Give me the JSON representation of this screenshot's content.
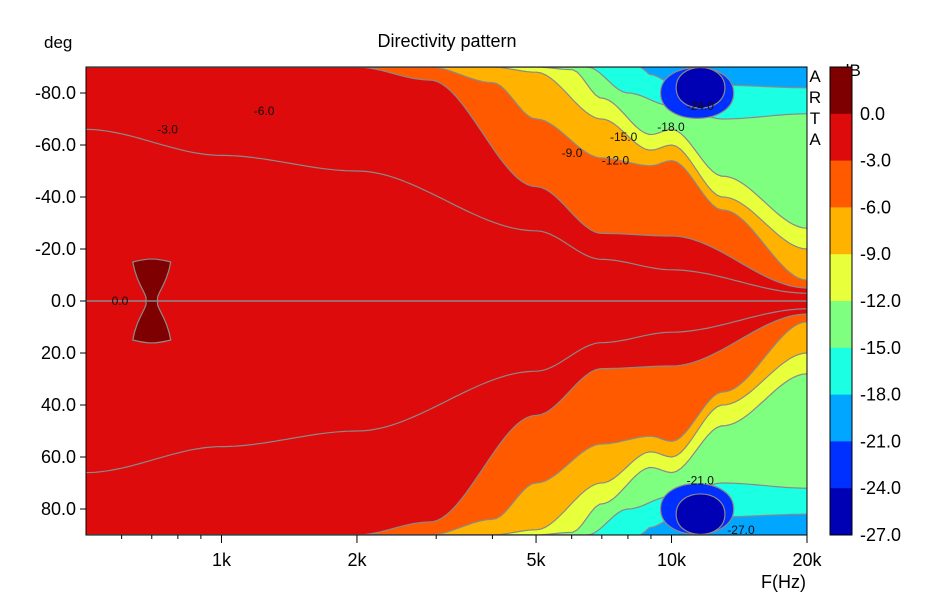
{
  "chart_data": {
    "type": "heatmap",
    "title": "Directivity pattern",
    "ylabel": "deg",
    "xlabel": "F(Hz)",
    "x_scale": "log",
    "xlim": [
      500,
      20000
    ],
    "ylim": [
      -90,
      90
    ],
    "y_inverted": true,
    "y_ticks": [
      {
        "v": -80,
        "t": "-80.0"
      },
      {
        "v": -60,
        "t": "-60.0"
      },
      {
        "v": -40,
        "t": "-40.0"
      },
      {
        "v": -20,
        "t": "-20.0"
      },
      {
        "v": 0,
        "t": "0.0"
      },
      {
        "v": 20,
        "t": "20.0"
      },
      {
        "v": 40,
        "t": "40.0"
      },
      {
        "v": 60,
        "t": "60.0"
      },
      {
        "v": 80,
        "t": "80.0"
      }
    ],
    "x_ticks": [
      {
        "v": 1000,
        "t": "1k"
      },
      {
        "v": 2000,
        "t": "2k"
      },
      {
        "v": 5000,
        "t": "5k"
      },
      {
        "v": 10000,
        "t": "10k"
      },
      {
        "v": 20000,
        "t": "20k"
      }
    ],
    "x_minor_ticks": [
      600,
      700,
      800,
      900,
      3000,
      4000,
      6000,
      7000,
      8000,
      9000
    ],
    "grid": false,
    "colorbar": {
      "label": "dB",
      "position": "right",
      "levels": [
        {
          "t": "0.0",
          "v": 0
        },
        {
          "t": "-3.0",
          "v": -3
        },
        {
          "t": "-6.0",
          "v": -6
        },
        {
          "t": "-9.0",
          "v": -9
        },
        {
          "t": "-12.0",
          "v": -12
        },
        {
          "t": "-15.0",
          "v": -15
        },
        {
          "t": "-18.0",
          "v": -18
        },
        {
          "t": "-21.0",
          "v": -21
        },
        {
          "t": "-24.0",
          "v": -24
        },
        {
          "t": "-27.0",
          "v": -27
        }
      ],
      "colors": [
        "#7f0000",
        "#dd0b0b",
        "#ff5a00",
        "#ffb300",
        "#e8ff3b",
        "#7fff80",
        "#1bffe2",
        "#00a6ff",
        "#0030ff",
        "#0000b4"
      ]
    },
    "bands": [
      {
        "level": -3,
        "f": [
          500,
          1000,
          2000,
          5000,
          7000,
          10000,
          20000
        ],
        "deg": [
          66,
          56,
          50,
          27,
          16,
          12,
          3
        ]
      },
      {
        "level": -6,
        "f": [
          500,
          1000,
          2000,
          2900,
          5000,
          7000,
          10000,
          20000
        ],
        "deg": [
          90,
          90,
          90,
          85,
          44,
          26,
          25,
          5
        ]
      },
      {
        "level": -9,
        "f": [
          500,
          2900,
          4000,
          5000,
          7000,
          9000,
          10000,
          13000,
          20000
        ],
        "deg": [
          90,
          90,
          84,
          70,
          55,
          52,
          54,
          35,
          8
        ]
      },
      {
        "level": -12,
        "f": [
          500,
          4000,
          5000,
          7000,
          9000,
          10000,
          13000,
          20000
        ],
        "deg": [
          90,
          90,
          88,
          70,
          58,
          60,
          40,
          20
        ]
      },
      {
        "level": -15,
        "f": [
          500,
          5000,
          6000,
          7000,
          9000,
          10000,
          13000,
          20000
        ],
        "deg": [
          90,
          90,
          89,
          78,
          64,
          66,
          48,
          28
        ]
      },
      {
        "level": -18,
        "f": [
          500,
          6500,
          8000,
          10000,
          13000,
          20000
        ],
        "deg": [
          90,
          90,
          80,
          75,
          70,
          72
        ]
      },
      {
        "level": -21,
        "f": [
          500,
          8500,
          9000,
          10000,
          13000,
          20000
        ],
        "deg": [
          90,
          90,
          87,
          84,
          83,
          82
        ]
      }
    ],
    "blobs": [
      {
        "level": 0,
        "f": 700,
        "deg": 0,
        "half_width_oct": 0.14,
        "half_height_deg": 15
      },
      {
        "level": -24,
        "f": 11400,
        "deg": 80,
        "half_width_oct": 0.27,
        "half_height_deg": 10
      },
      {
        "level": -27,
        "f": 11600,
        "deg": 82,
        "half_width_oct": 0.18,
        "half_height_deg": 8
      }
    ],
    "contour_labels": [
      {
        "t": "-3.0",
        "f": 720,
        "deg": -66
      },
      {
        "t": "-6.0",
        "f": 1180,
        "deg": -73
      },
      {
        "t": "0.0",
        "f": 570,
        "deg": 0
      },
      {
        "t": "-9.0",
        "f": 5700,
        "deg": -57
      },
      {
        "t": "-12.0",
        "f": 7000,
        "deg": -54
      },
      {
        "t": "-15.0",
        "f": 7300,
        "deg": -63
      },
      {
        "t": "-18.0",
        "f": 9300,
        "deg": -67
      },
      {
        "t": "-24.0",
        "f": 10800,
        "deg": -75
      },
      {
        "t": "-21.0",
        "f": 10800,
        "deg": 69
      },
      {
        "t": "-27.0",
        "f": 13300,
        "deg": 88
      }
    ],
    "watermark": [
      "A",
      "R",
      "T",
      "A"
    ]
  }
}
